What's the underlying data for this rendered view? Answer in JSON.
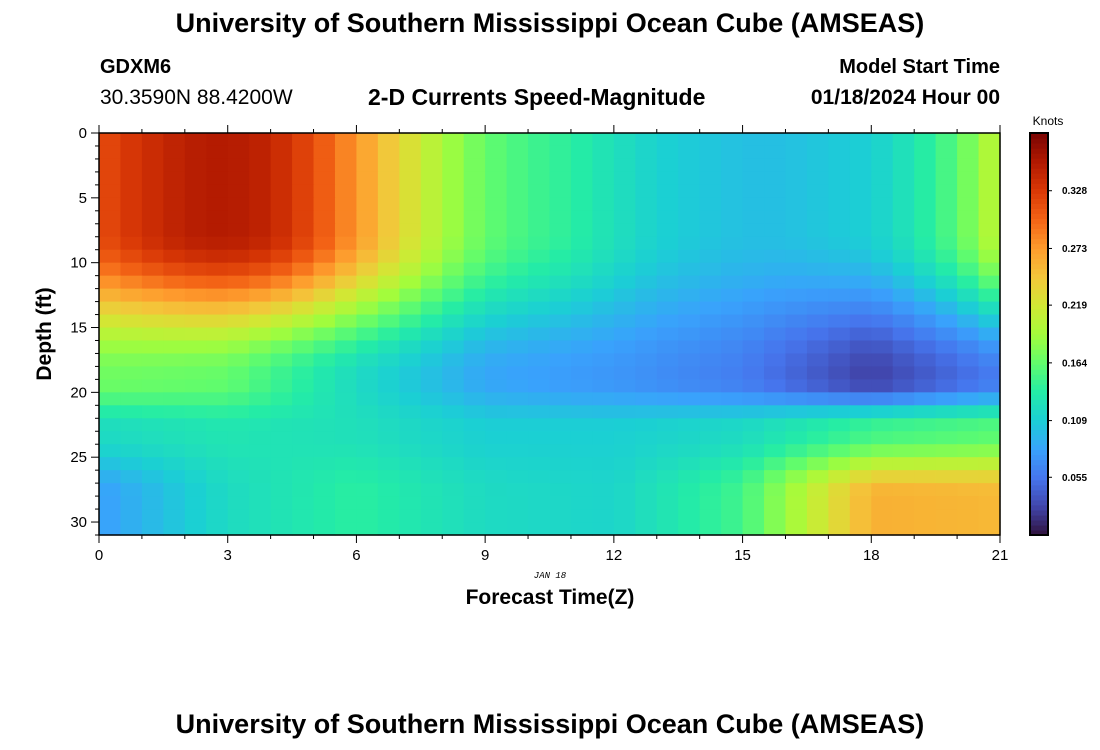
{
  "header": {
    "title": "University of Southern Mississippi Ocean Cube (AMSEAS)",
    "station_id": "GDXM6",
    "station_coords": "30.3590N  88.4200W",
    "subtitle": "2-D Currents Speed-Magnitude",
    "model_start_label": "Model Start Time",
    "model_start_value": "01/18/2024 Hour 00"
  },
  "footer": {
    "title": "University of Southern Mississippi Ocean Cube (AMSEAS)"
  },
  "chart_data": {
    "type": "heatmap",
    "title": "2-D Currents Speed-Magnitude",
    "xlabel": "Forecast Time(Z)",
    "ylabel": "Depth (ft)",
    "date_label": "JAN 18",
    "xlim": [
      0,
      21
    ],
    "ylim": [
      0,
      31
    ],
    "y_inverted": true,
    "xticks": [
      0,
      3,
      6,
      9,
      12,
      15,
      18,
      21
    ],
    "yticks": [
      0,
      5,
      10,
      15,
      20,
      25,
      30
    ],
    "colorbar": {
      "label": "Knots",
      "range": [
        0.0,
        0.383
      ],
      "ticks": [
        "0.055",
        "0.109",
        "0.164",
        "0.219",
        "0.273",
        "0.328"
      ],
      "colors": [
        "#30123b",
        "#4145ab",
        "#4675ed",
        "#39a2fc",
        "#1bcfd4",
        "#24eca6",
        "#61fc6c",
        "#a4fc3b",
        "#d1e834",
        "#f3c63a",
        "#fe9b2d",
        "#f36315",
        "#d93806",
        "#b11901",
        "#7a0402"
      ]
    },
    "grid": false,
    "bands": [
      {
        "depth_range": "0-15 ft",
        "hours": [
          0,
          1,
          2,
          3,
          4,
          5,
          6,
          7,
          8,
          9,
          10,
          11,
          12,
          13,
          14,
          15,
          16,
          17,
          18,
          19,
          20,
          21
        ],
        "values": [
          0.315,
          0.335,
          0.35,
          0.355,
          0.345,
          0.315,
          0.275,
          0.235,
          0.195,
          0.165,
          0.15,
          0.14,
          0.125,
          0.112,
          0.105,
          0.1,
          0.1,
          0.105,
          0.11,
          0.13,
          0.16,
          0.21
        ]
      },
      {
        "depth_range": "16-21 ft",
        "hours": [
          0,
          3,
          6,
          9,
          12,
          15,
          18,
          21
        ],
        "values": [
          0.17,
          0.165,
          0.12,
          0.085,
          0.075,
          0.06,
          0.025,
          0.06
        ]
      },
      {
        "depth_range": "22-24 ft",
        "hours": [
          0,
          3,
          6,
          9,
          12,
          15,
          18,
          21
        ],
        "values": [
          0.12,
          0.13,
          0.125,
          0.11,
          0.11,
          0.12,
          0.15,
          0.16
        ]
      },
      {
        "depth_range": "25-31 ft",
        "hours": [
          0,
          3,
          6,
          9,
          12,
          15,
          18,
          21
        ],
        "values": [
          0.08,
          0.12,
          0.14,
          0.12,
          0.115,
          0.15,
          0.26,
          0.255
        ]
      }
    ]
  }
}
